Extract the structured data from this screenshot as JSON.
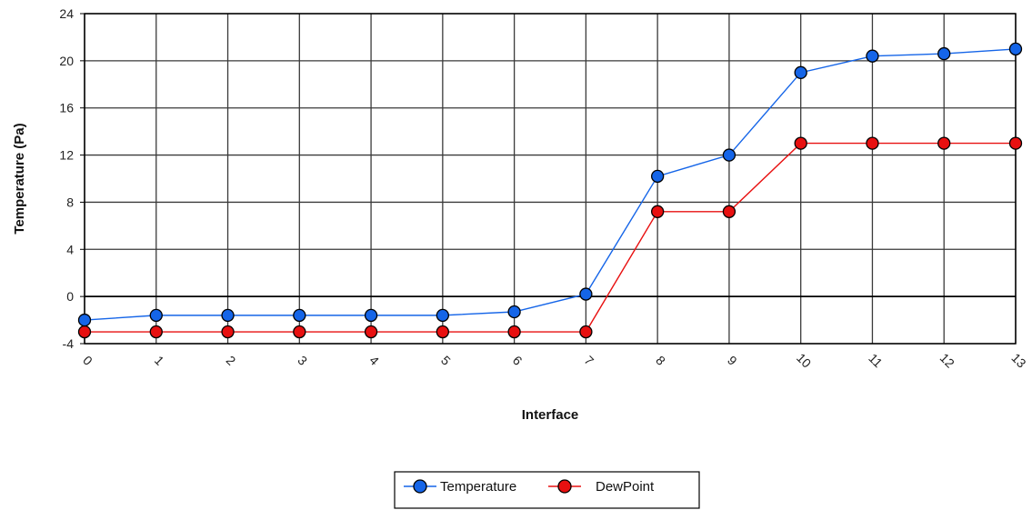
{
  "chart_data": {
    "type": "line",
    "xlabel": "Interface",
    "ylabel": "Temperature (Pa)",
    "categories": [
      "0",
      "1",
      "2",
      "3",
      "4",
      "5",
      "6",
      "7",
      "8",
      "9",
      "10",
      "11",
      "12",
      "13"
    ],
    "ylim": [
      -4,
      24
    ],
    "yticks": [
      -4,
      0,
      4,
      8,
      12,
      16,
      20,
      24
    ],
    "grid": true,
    "legend_position": "bottom-center",
    "series": [
      {
        "name": "Temperature",
        "color": "#1565e8",
        "values": [
          -2,
          -1.6,
          -1.6,
          -1.6,
          -1.6,
          -1.6,
          -1.3,
          0.2,
          10.2,
          12,
          19,
          20.4,
          20.6,
          21
        ]
      },
      {
        "name": "DewPoint",
        "color": "#e81010",
        "values": [
          -3,
          -3,
          -3,
          -3,
          -3,
          -3,
          -3,
          -3,
          7.2,
          7.2,
          13,
          13,
          13,
          13
        ]
      }
    ]
  }
}
